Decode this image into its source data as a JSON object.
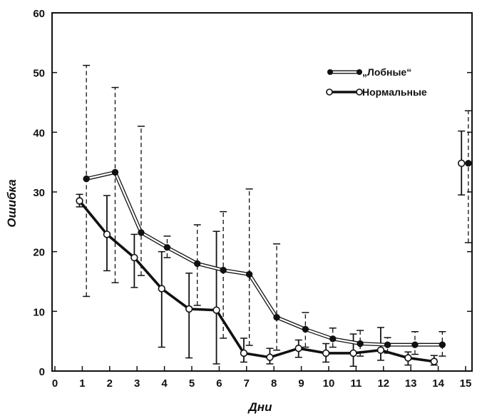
{
  "chart_data": {
    "type": "line",
    "xlabel": "Дни",
    "ylabel": "Ошибка",
    "xlim": [
      0,
      15.5
    ],
    "ylim": [
      0,
      60
    ],
    "x_ticks": [
      "0",
      "1",
      "2",
      "3",
      "4",
      "5",
      "6",
      "7",
      "8",
      "9",
      "10",
      "11",
      "12",
      "13",
      "14",
      "15"
    ],
    "y_ticks": [
      "0",
      "10",
      "20",
      "30",
      "40",
      "50",
      "60"
    ],
    "legend_position": "top-right",
    "series": [
      {
        "name": "„Лобные“",
        "style": "double-line-filled-marker",
        "error_bar_style": "dashed",
        "points": [
          {
            "x": 1.15,
            "y": 32.2,
            "lo": 12.5,
            "hi": 51.2
          },
          {
            "x": 2.2,
            "y": 33.3,
            "lo": 14.8,
            "hi": 47.5
          },
          {
            "x": 3.15,
            "y": 23.2,
            "lo": 16.0,
            "hi": 41.0
          },
          {
            "x": 4.1,
            "y": 20.7,
            "lo": 19.0,
            "hi": 22.6
          },
          {
            "x": 5.2,
            "y": 18.0,
            "lo": 11.0,
            "hi": 24.5
          },
          {
            "x": 6.15,
            "y": 16.9,
            "lo": 5.5,
            "hi": 26.7
          },
          {
            "x": 7.1,
            "y": 16.2,
            "lo": 4.3,
            "hi": 30.5
          },
          {
            "x": 8.1,
            "y": 9.0,
            "lo": 3.5,
            "hi": 21.3
          },
          {
            "x": 9.15,
            "y": 7.0,
            "lo": 4.0,
            "hi": 9.8
          },
          {
            "x": 10.15,
            "y": 5.4,
            "lo": 4.0,
            "hi": 7.2
          },
          {
            "x": 11.15,
            "y": 4.6,
            "lo": 2.5,
            "hi": 6.8
          },
          {
            "x": 12.15,
            "y": 4.4,
            "lo": 3.0,
            "hi": 5.6
          },
          {
            "x": 13.15,
            "y": 4.4,
            "lo": 2.8,
            "hi": 6.6
          },
          {
            "x": 14.15,
            "y": 4.4,
            "lo": 2.5,
            "hi": 6.6
          },
          {
            "x": 15.1,
            "y": 34.8,
            "lo": 21.5,
            "hi": 43.6,
            "isolated": true
          }
        ]
      },
      {
        "name": "Нормальные",
        "style": "bold-line-open-marker",
        "error_bar_style": "solid",
        "points": [
          {
            "x": 0.9,
            "y": 28.5,
            "lo": 27.5,
            "hi": 29.6
          },
          {
            "x": 1.9,
            "y": 22.9,
            "lo": 16.8,
            "hi": 29.4
          },
          {
            "x": 2.9,
            "y": 19.0,
            "lo": 14.0,
            "hi": 22.9
          },
          {
            "x": 3.9,
            "y": 13.8,
            "lo": 4.0,
            "hi": 20.0
          },
          {
            "x": 4.9,
            "y": 10.4,
            "lo": 2.2,
            "hi": 16.4
          },
          {
            "x": 5.9,
            "y": 10.2,
            "lo": 1.2,
            "hi": 23.4
          },
          {
            "x": 6.9,
            "y": 3.0,
            "lo": 1.5,
            "hi": 5.5
          },
          {
            "x": 7.85,
            "y": 2.3,
            "lo": 1.2,
            "hi": 3.8
          },
          {
            "x": 8.9,
            "y": 3.8,
            "lo": 2.3,
            "hi": 5.2
          },
          {
            "x": 9.9,
            "y": 3.0,
            "lo": 1.5,
            "hi": 4.6
          },
          {
            "x": 10.9,
            "y": 3.0,
            "lo": 0.8,
            "hi": 6.2
          },
          {
            "x": 11.9,
            "y": 3.5,
            "lo": 1.8,
            "hi": 7.3
          },
          {
            "x": 12.9,
            "y": 2.2,
            "lo": 1.0,
            "hi": 3.2
          },
          {
            "x": 13.85,
            "y": 1.6,
            "lo": 1.0,
            "hi": 2.6
          },
          {
            "x": 14.85,
            "y": 34.8,
            "lo": 29.5,
            "hi": 40.2,
            "isolated": true
          }
        ]
      }
    ]
  }
}
